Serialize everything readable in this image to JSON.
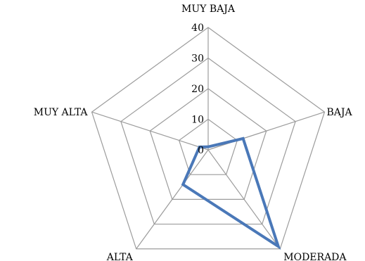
{
  "chart_data": {
    "type": "radar",
    "categories": [
      "MUY BAJA",
      "BAJA",
      "MODERADA",
      "ALTA",
      "MUY ALTA"
    ],
    "series": [
      {
        "values": [
          1,
          12,
          39,
          14,
          3
        ],
        "color": "#4a78b8"
      }
    ],
    "r_ticks": [
      0,
      10,
      20,
      30,
      40
    ],
    "rlim": [
      0,
      40
    ],
    "grid": true,
    "grid_color": "#9c9c9c",
    "legend": "none"
  }
}
